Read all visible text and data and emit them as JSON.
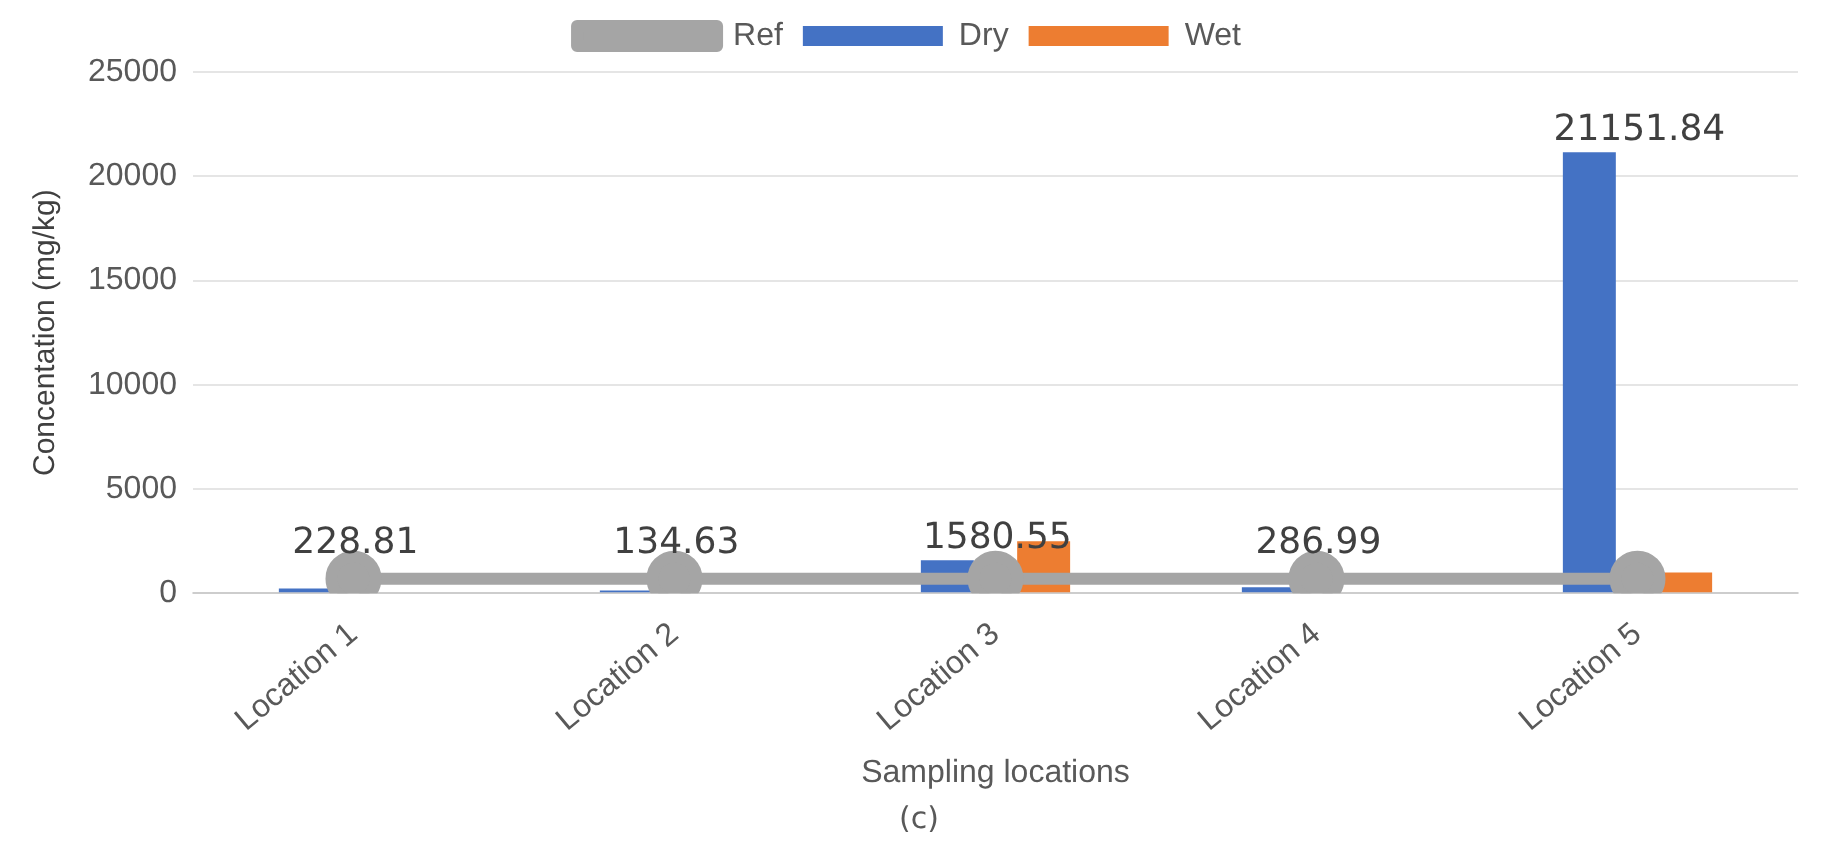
{
  "chart_data": {
    "type": "bar",
    "ylabel": "Concentation (mg/kg)",
    "xlabel": "Sampling locations",
    "annotations": [
      "(c)"
    ],
    "categories": [
      "Location 1",
      "Location 2",
      "Location 3",
      "Location 4",
      "Location 5"
    ],
    "series": [
      {
        "name": "Dry",
        "color": "#4472c4",
        "values": [
          228.81,
          134.63,
          1580.55,
          286.99,
          21151.84
        ],
        "value_labels": [
          "228.81",
          "134.63",
          "1580.55",
          "286.99",
          "21151.84"
        ]
      },
      {
        "name": "Wet",
        "color": "#ed7d31",
        "values": [
          null,
          null,
          2500,
          null,
          1000
        ]
      },
      {
        "name": "Ref",
        "type": "line",
        "color": "#a5a5a5",
        "values": [
          700,
          700,
          700,
          700,
          700
        ],
        "marker": "circle"
      }
    ],
    "ylim": [
      0,
      25000
    ],
    "yticks": [
      0,
      5000,
      10000,
      15000,
      20000,
      25000
    ],
    "grid": "y",
    "legend": "top"
  }
}
